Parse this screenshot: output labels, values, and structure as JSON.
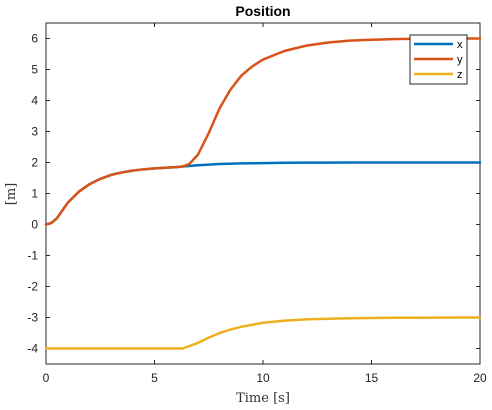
{
  "chart_data": {
    "type": "line",
    "title": "Position",
    "xlabel": "Time [s]",
    "ylabel": "[m]",
    "xlim": [
      0,
      20
    ],
    "ylim": [
      -4.5,
      6.5
    ],
    "xticks": [
      0,
      5,
      10,
      15,
      20
    ],
    "yticks": [
      -4,
      -3,
      -2,
      -1,
      0,
      1,
      2,
      3,
      4,
      5,
      6
    ],
    "grid": false,
    "legend_position": "top-right",
    "series": [
      {
        "name": "x",
        "color": "#0072BD",
        "x": [
          0,
          0.25,
          0.5,
          0.75,
          1,
          1.5,
          2,
          2.5,
          3,
          3.5,
          4,
          4.5,
          5,
          5.5,
          6,
          6.3,
          7,
          7.5,
          8,
          9,
          10,
          11,
          12,
          13,
          14,
          15,
          16,
          17,
          18,
          19,
          20
        ],
        "y": [
          0,
          0.05,
          0.2,
          0.45,
          0.7,
          1.05,
          1.3,
          1.47,
          1.6,
          1.68,
          1.74,
          1.78,
          1.81,
          1.83,
          1.85,
          1.87,
          1.91,
          1.93,
          1.95,
          1.97,
          1.98,
          1.99,
          1.995,
          1.997,
          1.998,
          2.0,
          2.0,
          2.0,
          2.0,
          2.0,
          2.0
        ]
      },
      {
        "name": "y",
        "color": "#D95319",
        "x": [
          0,
          0.25,
          0.5,
          0.75,
          1,
          1.5,
          2,
          2.5,
          3,
          3.5,
          4,
          4.5,
          5,
          5.5,
          6,
          6.3,
          6.6,
          7,
          7.5,
          8,
          8.5,
          9,
          9.5,
          10,
          11,
          12,
          13,
          14,
          15,
          16,
          17,
          18,
          19,
          20
        ],
        "y": [
          0,
          0.05,
          0.2,
          0.45,
          0.7,
          1.05,
          1.3,
          1.47,
          1.6,
          1.68,
          1.74,
          1.78,
          1.81,
          1.83,
          1.85,
          1.87,
          1.95,
          2.25,
          2.95,
          3.75,
          4.35,
          4.8,
          5.1,
          5.32,
          5.6,
          5.77,
          5.87,
          5.93,
          5.96,
          5.98,
          5.99,
          6.0,
          6.0,
          6.0
        ]
      },
      {
        "name": "z",
        "color": "#EDB120",
        "x": [
          0,
          1,
          2,
          3,
          4,
          5,
          6,
          6.3,
          7,
          7.5,
          8,
          8.5,
          9,
          10,
          11,
          12,
          13,
          14,
          15,
          16,
          17,
          18,
          19,
          20
        ],
        "y": [
          -4,
          -4,
          -4,
          -4,
          -4,
          -4,
          -4,
          -4,
          -3.82,
          -3.65,
          -3.5,
          -3.39,
          -3.3,
          -3.17,
          -3.1,
          -3.06,
          -3.04,
          -3.025,
          -3.015,
          -3.01,
          -3.006,
          -3.003,
          -3.001,
          -3.0
        ]
      }
    ]
  }
}
